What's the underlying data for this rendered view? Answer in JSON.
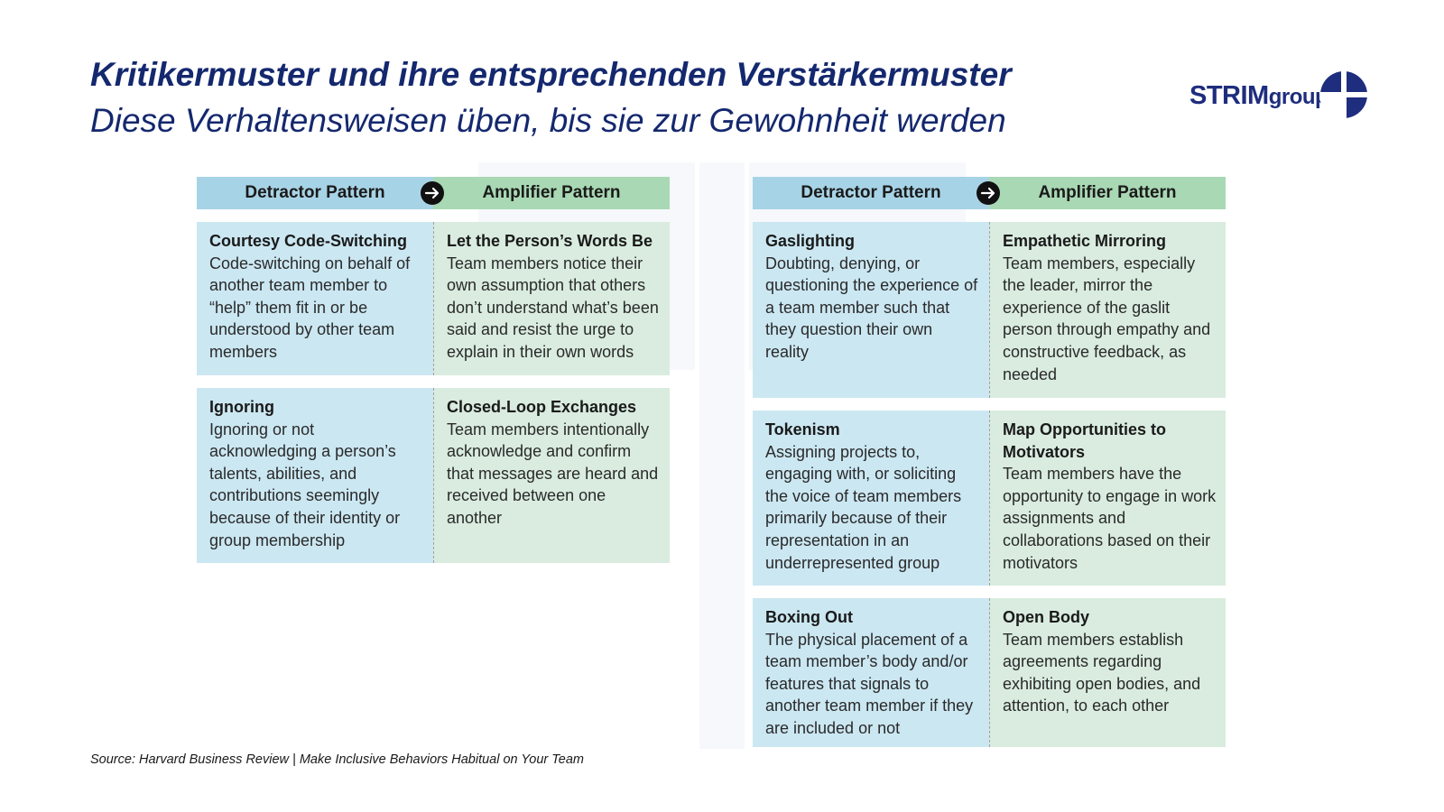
{
  "title": "Kritikermuster und ihre entsprechenden Verstärkermuster",
  "subtitle": "Diese Verhaltensweisen üben, bis sie zur Gewohnheit werden",
  "logo": {
    "part1": "STRIM",
    "part2": "group"
  },
  "colors": {
    "title": "#14286e",
    "detractor_header": "#a7d3e6",
    "amplifier_header": "#a9d8b4",
    "detractor_cell": "#cbe7f2",
    "amplifier_cell": "#d9ecdf"
  },
  "left": {
    "header": {
      "detractor": "Detractor Pattern",
      "amplifier": "Amplifier Pattern"
    },
    "rows": [
      {
        "detractor": {
          "title": "Courtesy Code-Switching",
          "text": "Code-switching on behalf of another team member to “help” them fit in or be understood by other team members"
        },
        "amplifier": {
          "title": "Let the Person’s Words Be",
          "text": "Team members notice their own assumption that others don’t understand what’s been said and resist the urge to explain in their own words"
        }
      },
      {
        "detractor": {
          "title": "Ignoring",
          "text": "Ignoring or not acknowledging a person’s talents, abilities, and contributions seemingly because of their identity or group membership"
        },
        "amplifier": {
          "title": "Closed-Loop Exchanges",
          "text": "Team members intentionally acknowledge and confirm that messages are heard and received between one another"
        }
      }
    ]
  },
  "right": {
    "header": {
      "detractor": "Detractor Pattern",
      "amplifier": "Amplifier Pattern"
    },
    "rows": [
      {
        "detractor": {
          "title": "Gaslighting",
          "text": "Doubting, denying, or questioning the experience of a team member such that they question their own reality"
        },
        "amplifier": {
          "title": "Empathetic Mirroring",
          "text": "Team members, especially the leader, mirror the experience of the gaslit person through empathy and constructive feedback, as needed"
        }
      },
      {
        "detractor": {
          "title": "Tokenism",
          "text": "Assigning projects to, engaging with, or soliciting the voice of team members primarily because of their representation in an underrepresented group"
        },
        "amplifier": {
          "title": "Map Opportunities to Motivators",
          "text": "Team members have the opportunity to engage in work assignments and collaborations based on their motivators"
        }
      },
      {
        "detractor": {
          "title": "Boxing Out",
          "text": "The physical placement of a team member’s body and/or features that signals to another team member if they are included or not"
        },
        "amplifier": {
          "title": "Open Body",
          "text": "Team members establish agreements regarding exhibiting open bodies, and attention, to each other"
        }
      }
    ]
  },
  "source": "Source: Harvard Business Review | Make Inclusive Behaviors Habitual on Your Team"
}
